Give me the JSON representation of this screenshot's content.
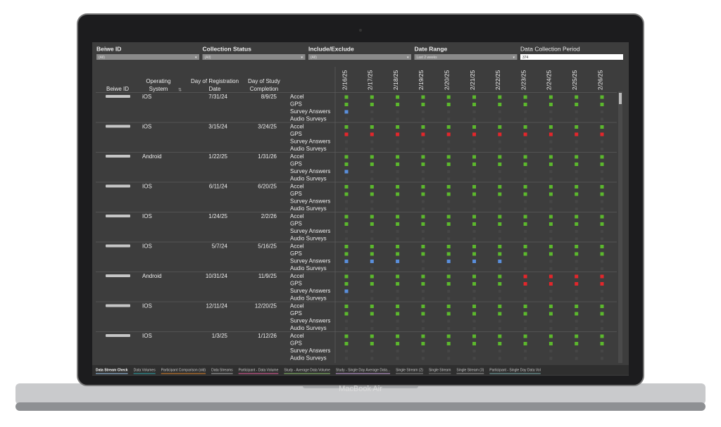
{
  "filters": [
    {
      "label": "Beiwe ID",
      "value": "(All)"
    },
    {
      "label": "Collection Status",
      "value": "(All)"
    },
    {
      "label": "Include/Exclude",
      "value": "(All)"
    },
    {
      "label": "Date Range",
      "value": "Last 2 weeks"
    },
    {
      "label": "Data Collection Period",
      "value": "374"
    }
  ],
  "table": {
    "headers": [
      "Beiwe ID",
      "Operating System",
      "Day of Registration Date",
      "Day of Study Completion"
    ],
    "dates": [
      "2/16/25",
      "2/17/25",
      "2/18/25",
      "2/19/25",
      "2/20/25",
      "2/21/25",
      "2/22/25",
      "2/23/25",
      "2/24/25",
      "2/25/25",
      "2/26/25"
    ],
    "streams": [
      "Accel",
      "GPS",
      "Survey Answers",
      "Audio Surveys"
    ],
    "rows": [
      {
        "os": "iOS",
        "registration": "7/31/24",
        "completion": "8/9/25",
        "cells": [
          [
            "#5cb82d",
            "#5cb82d",
            "#5cb82d",
            "#5cb82d",
            "#5cb82d",
            "#5cb82d",
            "#5cb82d",
            "#5cb82d",
            "#5cb82d",
            "#5cb82d",
            "#5cb82d"
          ],
          [
            "#5cb82d",
            "#5cb82d",
            "#5cb82d",
            "#5cb82d",
            "#5cb82d",
            "#5cb82d",
            "#5cb82d",
            "#5cb82d",
            "#5cb82d",
            "#5cb82d",
            "#5cb82d"
          ],
          [
            "#5a8fdc",
            null,
            null,
            null,
            null,
            null,
            null,
            null,
            null,
            null,
            null
          ],
          [
            null,
            null,
            null,
            null,
            null,
            null,
            null,
            null,
            null,
            null,
            null
          ]
        ]
      },
      {
        "os": "iOS",
        "registration": "3/15/24",
        "completion": "3/24/25",
        "cells": [
          [
            "#5cb82d",
            "#5cb82d",
            "#5cb82d",
            "#5cb82d",
            "#5cb82d",
            "#5cb82d",
            "#5cb82d",
            "#5cb82d",
            "#5cb82d",
            "#5cb82d",
            "#5cb82d"
          ],
          [
            "#e3262b",
            "#e3262b",
            "#e3262b",
            "#e3262b",
            "#e3262b",
            "#e3262b",
            "#e3262b",
            "#e3262b",
            "#e3262b",
            "#e3262b",
            "#e3262b"
          ],
          [
            null,
            null,
            null,
            null,
            null,
            null,
            null,
            null,
            null,
            null,
            null
          ],
          [
            null,
            null,
            null,
            null,
            null,
            null,
            null,
            null,
            null,
            null,
            null
          ]
        ]
      },
      {
        "os": "Android",
        "registration": "1/22/25",
        "completion": "1/31/26",
        "cells": [
          [
            "#5cb82d",
            "#5cb82d",
            "#5cb82d",
            "#5cb82d",
            "#5cb82d",
            "#5cb82d",
            "#5cb82d",
            "#5cb82d",
            "#5cb82d",
            "#5cb82d",
            "#5cb82d"
          ],
          [
            "#5cb82d",
            "#5cb82d",
            "#5cb82d",
            "#5cb82d",
            "#5cb82d",
            "#5cb82d",
            "#5cb82d",
            "#5cb82d",
            "#5cb82d",
            "#5cb82d",
            "#5cb82d"
          ],
          [
            "#5a8fdc",
            null,
            null,
            null,
            null,
            null,
            null,
            null,
            null,
            null,
            null
          ],
          [
            null,
            null,
            null,
            null,
            null,
            null,
            null,
            null,
            null,
            null,
            null
          ]
        ]
      },
      {
        "os": "IOS",
        "registration": "6/11/24",
        "completion": "6/20/25",
        "cells": [
          [
            "#5cb82d",
            "#5cb82d",
            "#5cb82d",
            "#5cb82d",
            "#5cb82d",
            "#5cb82d",
            "#5cb82d",
            "#5cb82d",
            "#5cb82d",
            "#5cb82d",
            "#5cb82d"
          ],
          [
            "#5cb82d",
            "#5cb82d",
            "#5cb82d",
            "#5cb82d",
            "#5cb82d",
            "#5cb82d",
            "#5cb82d",
            "#5cb82d",
            "#5cb82d",
            "#5cb82d",
            "#5cb82d"
          ],
          [
            null,
            null,
            null,
            null,
            null,
            null,
            null,
            null,
            null,
            null,
            null
          ],
          [
            null,
            null,
            null,
            null,
            null,
            null,
            null,
            null,
            null,
            null,
            null
          ]
        ]
      },
      {
        "os": "IOS",
        "registration": "1/24/25",
        "completion": "2/2/26",
        "cells": [
          [
            "#5cb82d",
            "#5cb82d",
            "#5cb82d",
            "#5cb82d",
            "#5cb82d",
            "#5cb82d",
            "#5cb82d",
            "#5cb82d",
            "#5cb82d",
            "#5cb82d",
            "#5cb82d"
          ],
          [
            "#5cb82d",
            "#5cb82d",
            "#5cb82d",
            "#5cb82d",
            "#5cb82d",
            "#5cb82d",
            "#5cb82d",
            "#5cb82d",
            "#5cb82d",
            "#5cb82d",
            "#5cb82d"
          ],
          [
            null,
            null,
            null,
            null,
            null,
            null,
            null,
            null,
            null,
            null,
            null
          ],
          [
            null,
            null,
            null,
            null,
            null,
            null,
            null,
            null,
            null,
            null,
            null
          ]
        ]
      },
      {
        "os": "IOS",
        "registration": "5/7/24",
        "completion": "5/16/25",
        "cells": [
          [
            "#5cb82d",
            "#5cb82d",
            "#5cb82d",
            "#5cb82d",
            "#5cb82d",
            "#5cb82d",
            "#5cb82d",
            "#5cb82d",
            "#5cb82d",
            "#5cb82d",
            "#5cb82d"
          ],
          [
            "#5cb82d",
            "#5cb82d",
            "#5cb82d",
            "#5cb82d",
            "#5cb82d",
            "#5cb82d",
            "#5cb82d",
            "#5cb82d",
            "#5cb82d",
            "#5cb82d",
            "#5cb82d"
          ],
          [
            "#5a8fdc",
            "#5a8fdc",
            "#5a8fdc",
            null,
            "#5a8fdc",
            "#5a8fdc",
            "#5a8fdc",
            null,
            null,
            null,
            null
          ],
          [
            null,
            null,
            null,
            null,
            null,
            null,
            null,
            null,
            null,
            null,
            null
          ]
        ]
      },
      {
        "os": "Android",
        "registration": "10/31/24",
        "completion": "11/9/25",
        "cells": [
          [
            "#5cb82d",
            "#5cb82d",
            "#5cb82d",
            "#5cb82d",
            "#5cb82d",
            "#5cb82d",
            "#5cb82d",
            "#e3262b",
            "#e3262b",
            "#e3262b",
            "#e3262b"
          ],
          [
            "#5cb82d",
            "#5cb82d",
            "#5cb82d",
            "#5cb82d",
            "#5cb82d",
            "#5cb82d",
            "#5cb82d",
            "#e3262b",
            "#e3262b",
            "#e3262b",
            "#e3262b"
          ],
          [
            "#5a8fdc",
            null,
            null,
            null,
            null,
            null,
            null,
            null,
            null,
            null,
            null
          ],
          [
            null,
            null,
            null,
            null,
            null,
            null,
            null,
            null,
            null,
            null,
            null
          ]
        ]
      },
      {
        "os": "IOS",
        "registration": "12/11/24",
        "completion": "12/20/25",
        "cells": [
          [
            "#5cb82d",
            "#5cb82d",
            "#5cb82d",
            "#5cb82d",
            "#5cb82d",
            "#5cb82d",
            "#5cb82d",
            "#5cb82d",
            "#5cb82d",
            "#5cb82d",
            "#5cb82d"
          ],
          [
            "#5cb82d",
            "#5cb82d",
            "#5cb82d",
            "#5cb82d",
            "#5cb82d",
            "#5cb82d",
            "#5cb82d",
            "#5cb82d",
            "#5cb82d",
            "#5cb82d",
            "#5cb82d"
          ],
          [
            null,
            null,
            null,
            null,
            null,
            null,
            null,
            null,
            null,
            null,
            null
          ],
          [
            null,
            null,
            null,
            null,
            null,
            null,
            null,
            null,
            null,
            null,
            null
          ]
        ]
      },
      {
        "os": "IOS",
        "registration": "1/3/25",
        "completion": "1/12/26",
        "cells": [
          [
            "#5cb82d",
            "#5cb82d",
            "#5cb82d",
            "#5cb82d",
            "#5cb82d",
            "#5cb82d",
            "#5cb82d",
            "#5cb82d",
            "#5cb82d",
            "#5cb82d",
            "#5cb82d"
          ],
          [
            "#5cb82d",
            "#5cb82d",
            "#5cb82d",
            "#5cb82d",
            "#5cb82d",
            "#5cb82d",
            "#5cb82d",
            "#5cb82d",
            "#5cb82d",
            "#5cb82d",
            "#5cb82d"
          ],
          [
            null,
            null,
            null,
            null,
            null,
            null,
            null,
            null,
            null,
            null,
            null
          ],
          [
            null,
            null,
            null,
            null,
            null,
            null,
            null,
            null,
            null,
            null,
            null
          ]
        ]
      }
    ]
  },
  "tabs": [
    "Data Stream Check",
    "Data Volumes",
    "Participant Comparison (old)",
    "Data Streams",
    "Participant - Data Volume",
    "Study - Average Data Volume",
    "Study - Single Day Average Data...",
    "Single Stream (2)",
    "Single Stream",
    "Single Stream (3)",
    "Participant - Single Day Data Vol"
  ],
  "device": "MacBook Air"
}
